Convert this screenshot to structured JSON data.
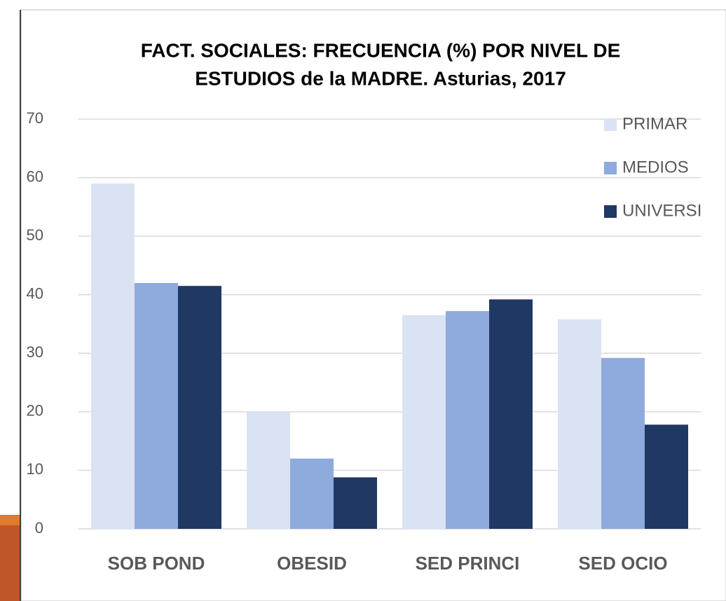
{
  "chart_data": {
    "type": "bar",
    "title": [
      "FACT. SOCIALES: FRECUENCIA (%) POR NIVEL DE",
      "ESTUDIOS de la MADRE. Asturias, 2017"
    ],
    "categories": [
      "SOB POND",
      "OBESID",
      "SED PRINCI",
      "SED OCIO"
    ],
    "series": [
      {
        "name": "PRIMAR",
        "color": "#dae3f3",
        "values": [
          59,
          20,
          36.5,
          35.8
        ]
      },
      {
        "name": "MEDIOS",
        "color": "#8faadc",
        "values": [
          42,
          12,
          37.2,
          29.2
        ]
      },
      {
        "name": "UNIVERSI",
        "color": "#203864",
        "values": [
          41.5,
          8.8,
          39.2,
          17.8
        ]
      }
    ],
    "ylim": [
      0,
      70
    ],
    "yticks": [
      0,
      10,
      20,
      30,
      40,
      50,
      60,
      70
    ],
    "grid": true,
    "legend": "upper right"
  }
}
